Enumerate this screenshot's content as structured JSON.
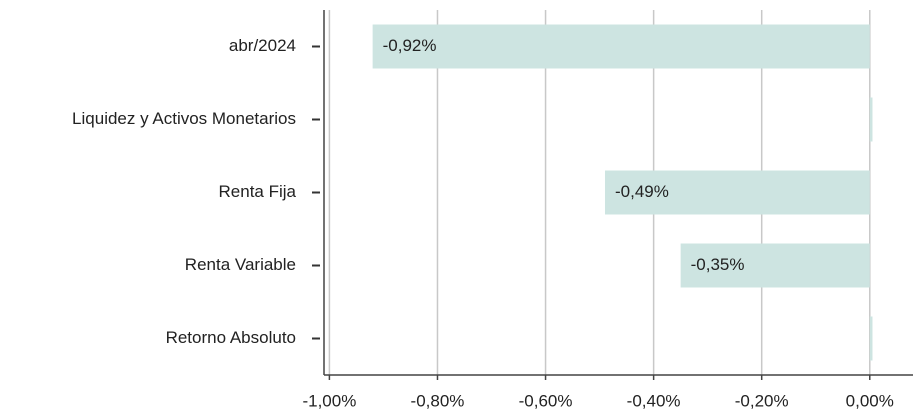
{
  "chart_data": {
    "type": "bar",
    "orientation": "horizontal",
    "categories": [
      "abr/2024",
      "Liquidez y Activos Monetarios",
      "Renta Fija",
      "Renta Variable",
      "Retorno Absoluto"
    ],
    "values": [
      -0.92,
      0.005,
      -0.49,
      -0.35,
      0.005
    ],
    "value_labels": [
      "-0,92%",
      null,
      "-0,49%",
      "-0,35%",
      null
    ],
    "color": "#cde4e1",
    "xlim": [
      -1.01,
      0.08
    ],
    "xticks": [
      {
        "value": -1,
        "label": "-1,00%"
      },
      {
        "value": -0.8,
        "label": "-0,80%"
      },
      {
        "value": -0.6,
        "label": "-0,60%"
      },
      {
        "value": -0.4,
        "label": "-0,40%"
      },
      {
        "value": -0.2,
        "label": "-0,20%"
      },
      {
        "value": 0,
        "label": "0,00%"
      }
    ],
    "grid": true
  }
}
